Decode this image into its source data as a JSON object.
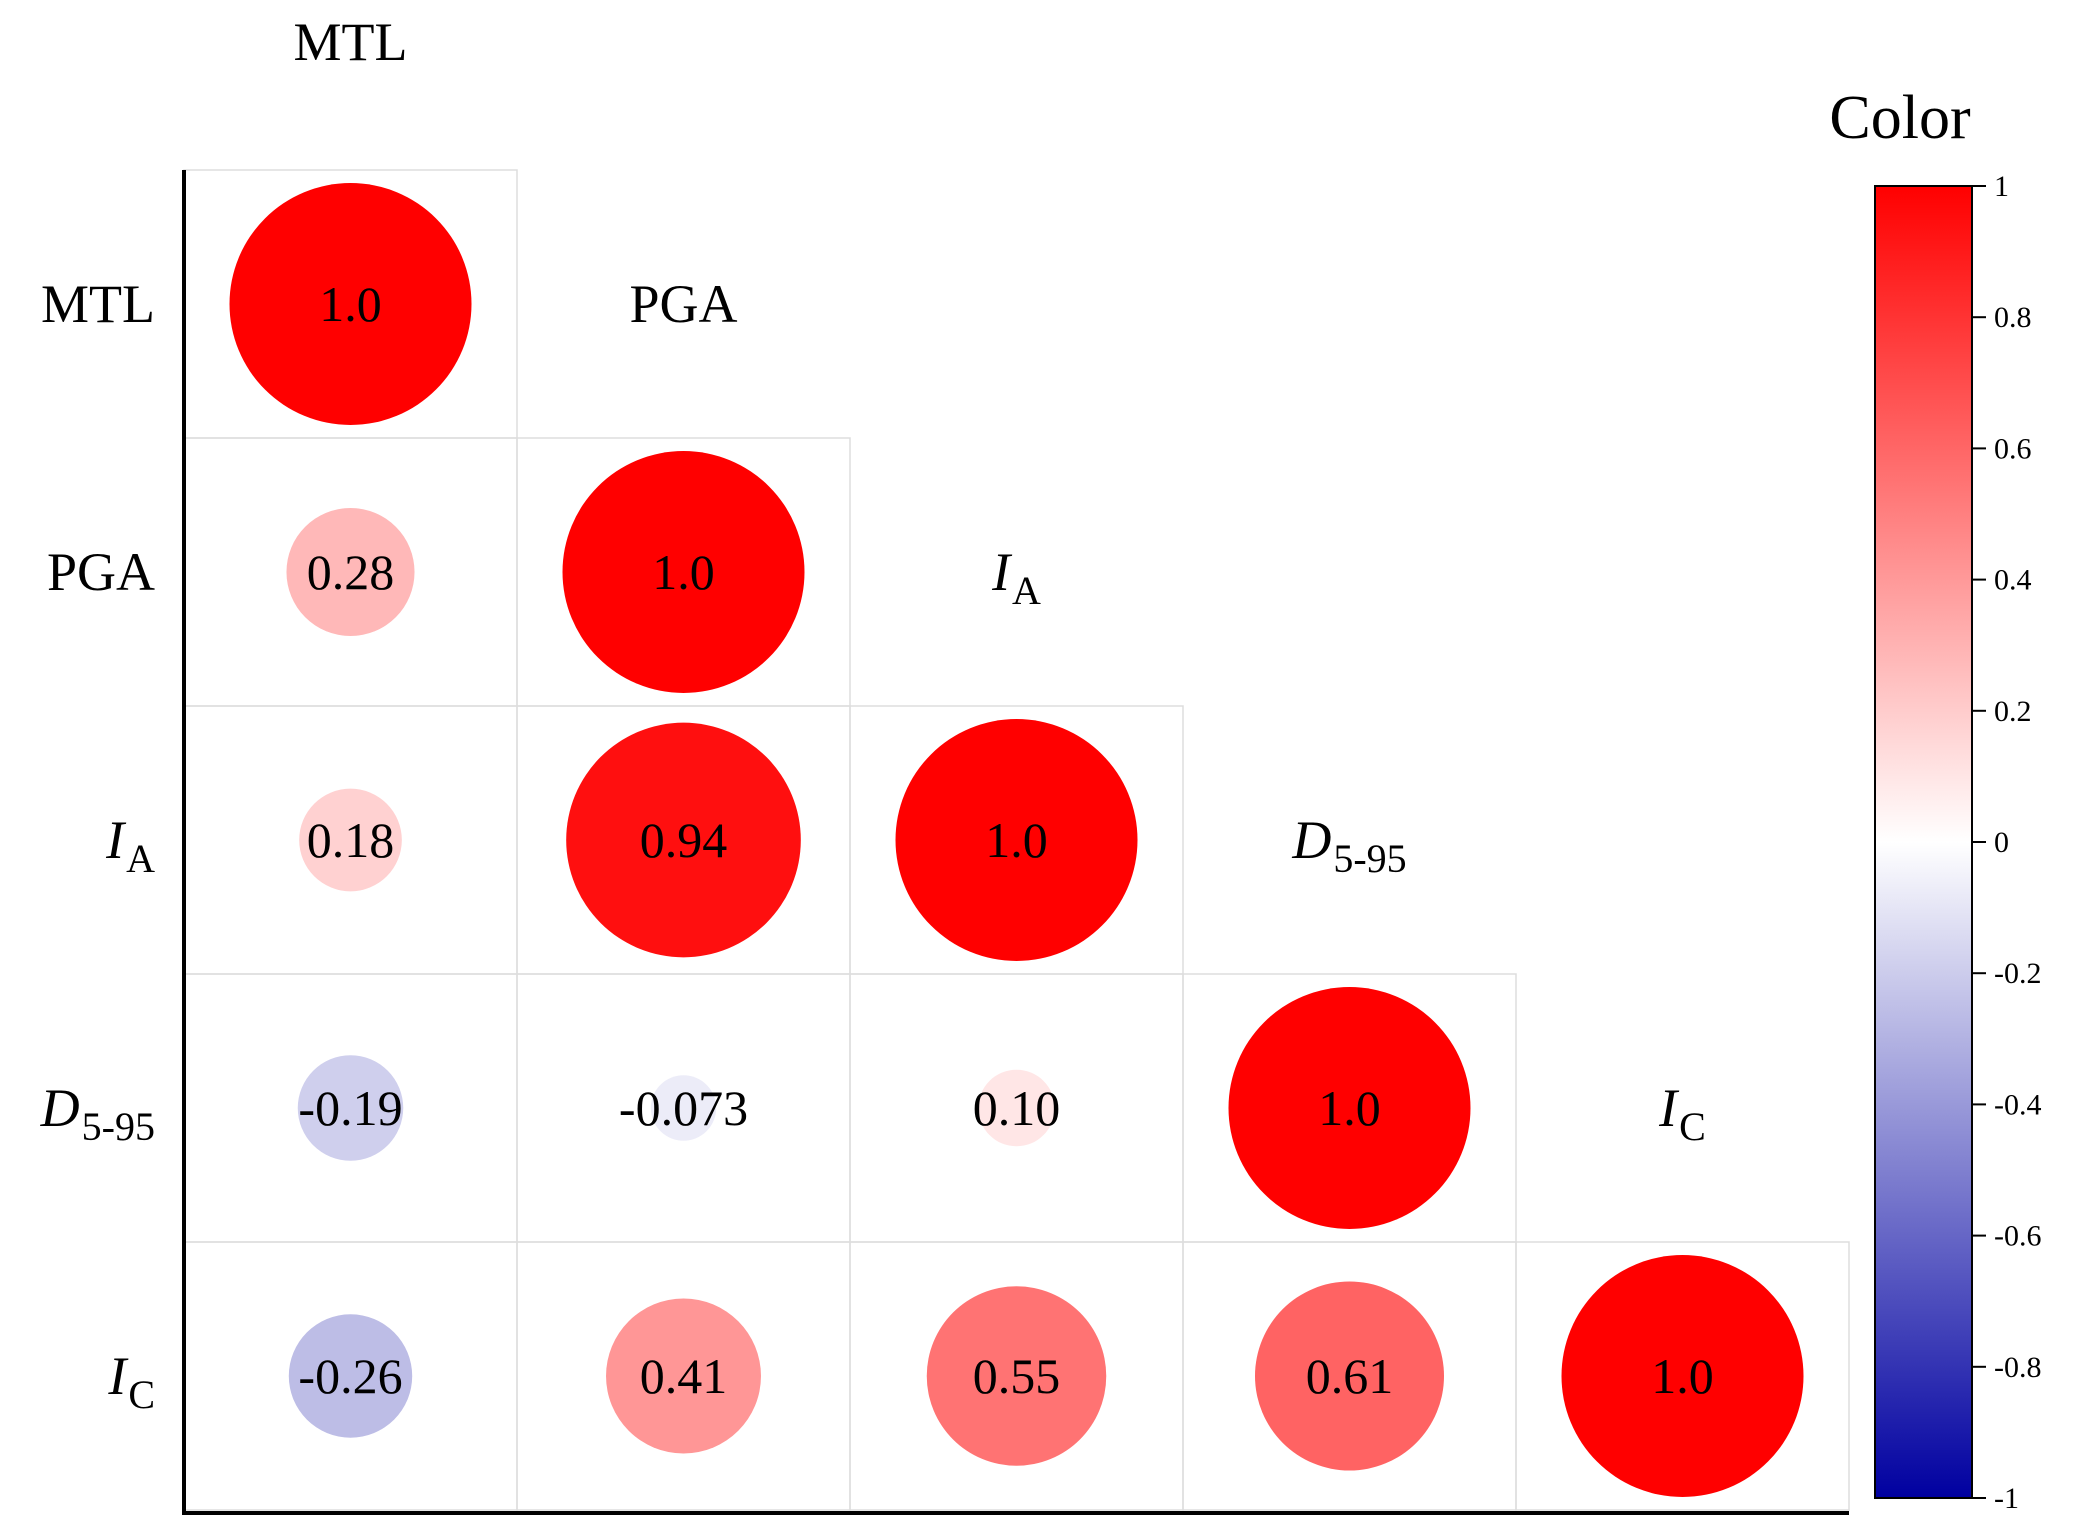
{
  "chart_data": {
    "type": "heatmap",
    "subtype": "correlation-matrix-lower-triangle",
    "variables": [
      {
        "main": "MTL",
        "sub": "",
        "italic": false
      },
      {
        "main": "PGA",
        "sub": "",
        "italic": false
      },
      {
        "main": "I",
        "sub": "A",
        "italic": true
      },
      {
        "main": "D",
        "sub": "5-95",
        "italic": true
      },
      {
        "main": "I",
        "sub": "C",
        "italic": true
      }
    ],
    "matrix": [
      [
        1.0,
        null,
        null,
        null,
        null
      ],
      [
        0.28,
        1.0,
        null,
        null,
        null
      ],
      [
        0.18,
        0.94,
        1.0,
        null,
        null
      ],
      [
        -0.19,
        -0.073,
        0.1,
        1.0,
        null
      ],
      [
        -0.26,
        0.41,
        0.55,
        0.61,
        1.0
      ]
    ],
    "labels": [
      [
        "1.0",
        "",
        "",
        "",
        ""
      ],
      [
        "0.28",
        "1.0",
        "",
        "",
        ""
      ],
      [
        "0.18",
        "0.94",
        "1.0",
        "",
        ""
      ],
      [
        "-0.19",
        "-0.073",
        "0.10",
        "1.0",
        ""
      ],
      [
        "-0.26",
        "0.41",
        "0.55",
        "0.61",
        "1.0"
      ]
    ],
    "colorbar": {
      "title": "Color",
      "range": [
        -1,
        1
      ],
      "ticks": [
        "1",
        "0.8",
        "0.6",
        "0.4",
        "0.2",
        "0",
        "-0.2",
        "-0.4",
        "-0.6",
        "-0.8",
        "-1"
      ],
      "low_color": "#0000a0",
      "mid_color": "#ffffff",
      "high_color": "#ff0000"
    },
    "grid": true
  }
}
